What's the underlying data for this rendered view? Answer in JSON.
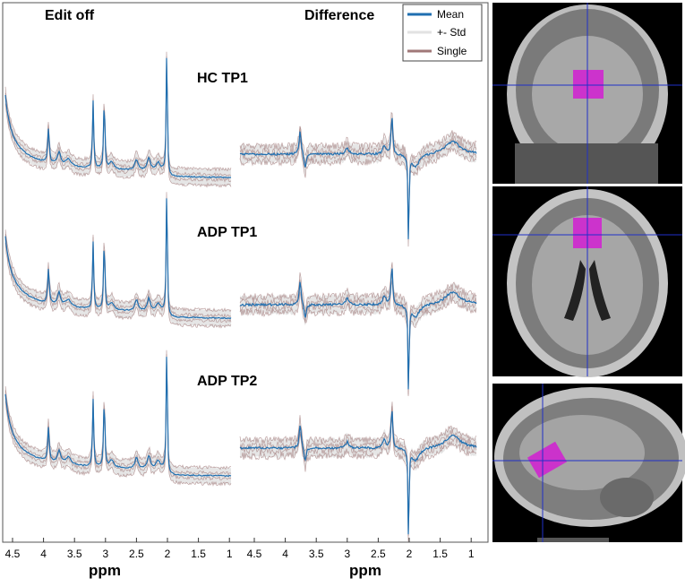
{
  "panels": [
    {
      "title": "Edit off",
      "ticks": [
        "4.5",
        "4",
        "3.5",
        "3",
        "2.5",
        "2",
        "1.5",
        "1"
      ],
      "xlabel": "ppm"
    },
    {
      "title": "Difference",
      "ticks": [
        "4.5",
        "4",
        "3.5",
        "3",
        "2.5",
        "2",
        "1.5",
        "1"
      ],
      "xlabel": "ppm"
    }
  ],
  "groups": [
    "HC TP1",
    "ADP TP1",
    "ADP TP2"
  ],
  "legend": [
    "Mean",
    "+- Std",
    "Single"
  ]
}
